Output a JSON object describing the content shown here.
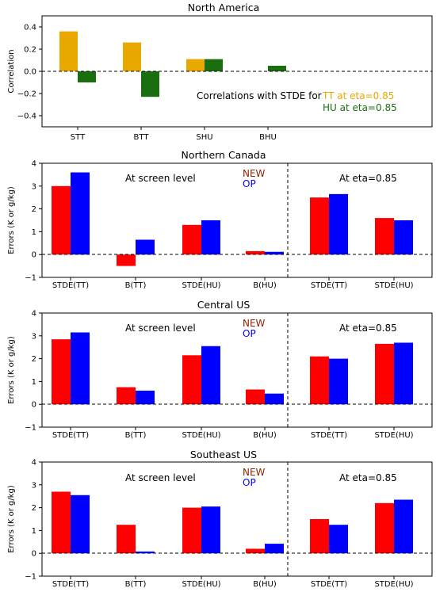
{
  "colors": {
    "tt_corr": "#e8a800",
    "hu_corr": "#1a6e10",
    "new": "#ff0000",
    "op": "#0000ff",
    "new_label": "#8b2500",
    "op_label": "#0000ff",
    "axis": "#000000"
  },
  "chart_data": [
    {
      "type": "bar",
      "title": "North America",
      "ylabel": "Correlation",
      "ylim": [
        -0.5,
        0.5
      ],
      "yticks": [
        "0.4",
        "0.2",
        "0.0",
        "−0.2",
        "−0.4"
      ],
      "ytick_values": [
        0.4,
        0.2,
        0.0,
        -0.2,
        -0.4
      ],
      "categories": [
        "STT",
        "BTT",
        "SHU",
        "BHU"
      ],
      "series": [
        {
          "name": "TT at eta=0.85",
          "values": [
            0.36,
            0.26,
            0.11,
            0.0
          ]
        },
        {
          "name": "HU at eta=0.85",
          "values": [
            -0.1,
            -0.23,
            0.11,
            0.05
          ]
        }
      ],
      "annotation": "Correlations with STDE for",
      "legend_placement": "center-right"
    },
    {
      "type": "bar",
      "title": "Northern Canada",
      "ylabel": "Errors (K or g/kg)",
      "ylim": [
        -1,
        4
      ],
      "yticks": [
        "4",
        "3",
        "2",
        "1",
        "0",
        "−1"
      ],
      "ytick_values": [
        4,
        3,
        2,
        1,
        0,
        -1
      ],
      "categories": [
        "STDE(TT)",
        "B(TT)",
        "STDE(HU)",
        "B(HU)",
        "STDE(TT)",
        "STDE(HU)"
      ],
      "series": [
        {
          "name": "NEW",
          "values": [
            3.0,
            -0.5,
            1.3,
            0.15,
            2.5,
            1.6
          ]
        },
        {
          "name": "OP",
          "values": [
            3.6,
            0.65,
            1.5,
            0.12,
            2.65,
            1.5
          ]
        }
      ],
      "section_labels": [
        "At screen level",
        "At eta=0.85"
      ],
      "legend_placement": "top-center"
    },
    {
      "type": "bar",
      "title": "Central US",
      "ylabel": "Errors (K or g/kg)",
      "ylim": [
        -1,
        4
      ],
      "yticks": [
        "4",
        "3",
        "2",
        "1",
        "0",
        "−1"
      ],
      "ytick_values": [
        4,
        3,
        2,
        1,
        0,
        -1
      ],
      "categories": [
        "STDE(TT)",
        "B(TT)",
        "STDE(HU)",
        "B(HU)",
        "STDE(TT)",
        "STDE(HU)"
      ],
      "series": [
        {
          "name": "NEW",
          "values": [
            2.85,
            0.75,
            2.15,
            0.65,
            2.1,
            2.65
          ]
        },
        {
          "name": "OP",
          "values": [
            3.15,
            0.6,
            2.55,
            0.47,
            2.0,
            2.7
          ]
        }
      ],
      "section_labels": [
        "At screen level",
        "At eta=0.85"
      ],
      "legend_placement": "top-center"
    },
    {
      "type": "bar",
      "title": "Southeast US",
      "ylabel": "Errors (K or g/kg)",
      "ylim": [
        -1,
        4
      ],
      "yticks": [
        "4",
        "3",
        "2",
        "1",
        "0",
        "−1"
      ],
      "ytick_values": [
        4,
        3,
        2,
        1,
        0,
        -1
      ],
      "categories": [
        "STDE(TT)",
        "B(TT)",
        "STDE(HU)",
        "B(HU)",
        "STDE(TT)",
        "STDE(HU)"
      ],
      "series": [
        {
          "name": "NEW",
          "values": [
            2.7,
            1.25,
            2.0,
            0.2,
            1.5,
            2.2
          ]
        },
        {
          "name": "OP",
          "values": [
            2.55,
            0.08,
            2.05,
            0.42,
            1.25,
            2.35
          ]
        }
      ],
      "section_labels": [
        "At screen level",
        "At eta=0.85"
      ],
      "legend_placement": "top-center"
    }
  ]
}
